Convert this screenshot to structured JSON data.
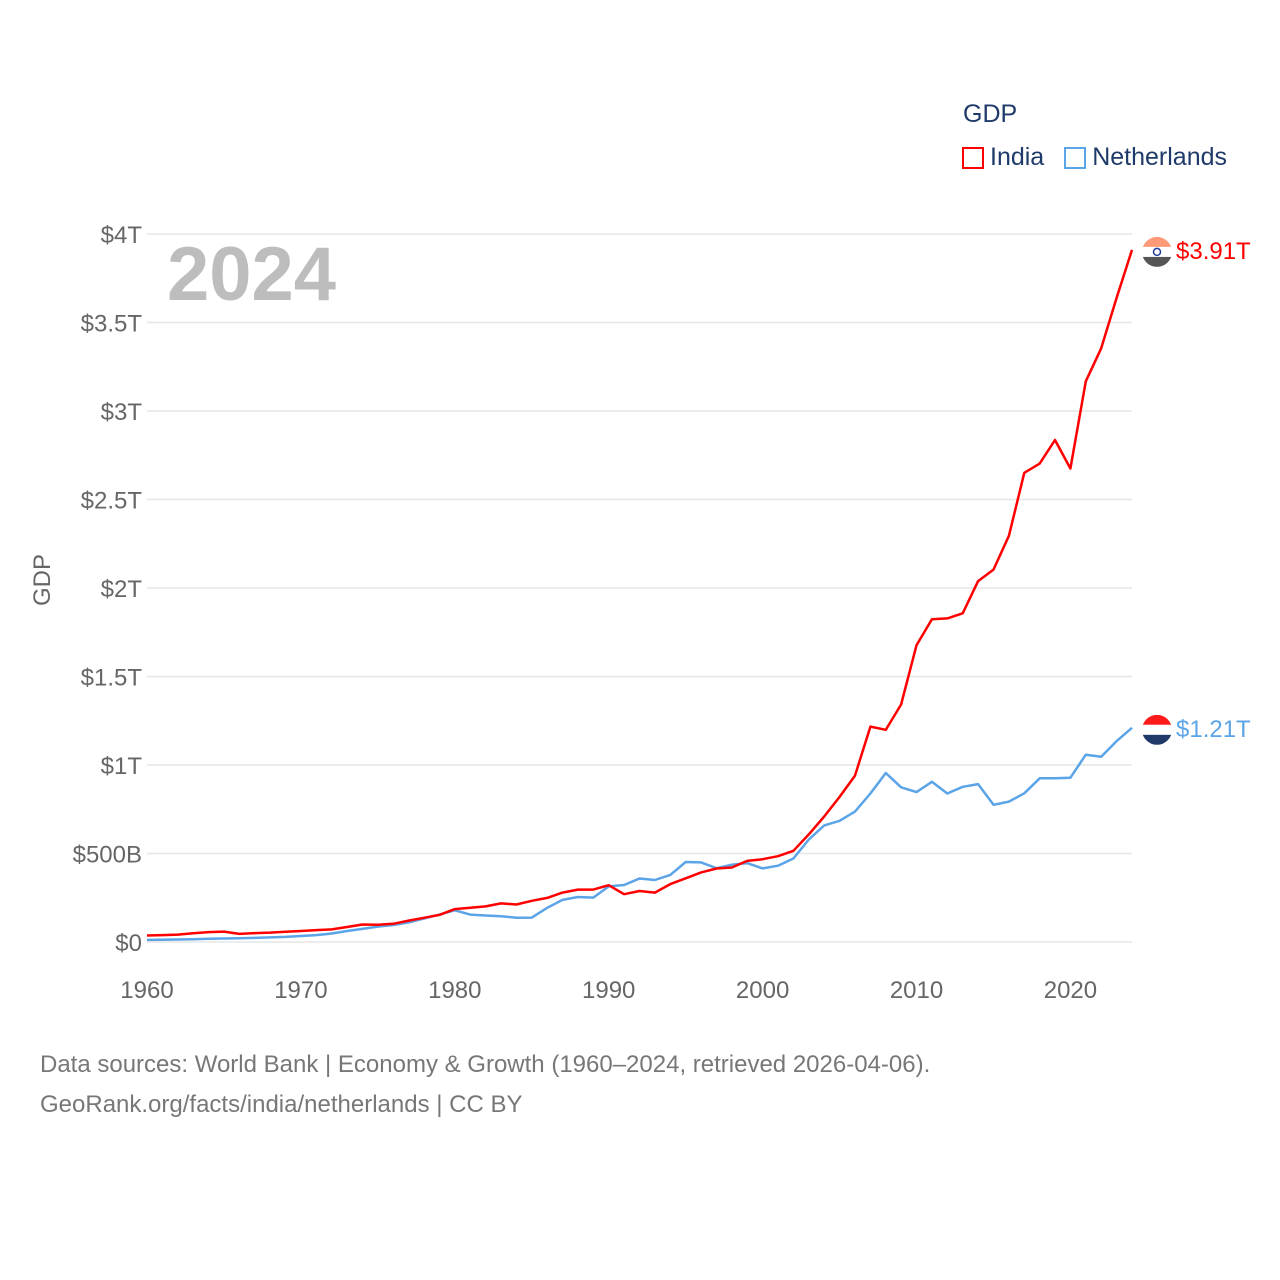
{
  "chart_data": {
    "type": "line",
    "title": "GDP",
    "ylabel": "GDP",
    "xlabel": "",
    "year_label": "2024",
    "xlim": [
      1960,
      2024
    ],
    "ylim": [
      0,
      4000
    ],
    "y_unit": "billions USD",
    "x_ticks": [
      "1960",
      "1970",
      "1980",
      "1990",
      "2000",
      "2010",
      "2020"
    ],
    "y_ticks": [
      {
        "value": 0,
        "label": "$0"
      },
      {
        "value": 500,
        "label": "$500B"
      },
      {
        "value": 1000,
        "label": "$1T"
      },
      {
        "value": 1500,
        "label": "$1.5T"
      },
      {
        "value": 2000,
        "label": "$2T"
      },
      {
        "value": 2500,
        "label": "$2.5T"
      },
      {
        "value": 3000,
        "label": "$3T"
      },
      {
        "value": 3500,
        "label": "$3.5T"
      },
      {
        "value": 4000,
        "label": "$4T"
      }
    ],
    "grid": true,
    "legend_placement": "top-right",
    "x_start": 1960,
    "series": [
      {
        "name": "India",
        "color": "#ff0000",
        "end_label": "$3.91T",
        "values": [
          37,
          39,
          42,
          49,
          56,
          59,
          46,
          50,
          53,
          58,
          62,
          67,
          71,
          85,
          99,
          98,
          103,
          121,
          137,
          153,
          186,
          193,
          201,
          218,
          212,
          233,
          249,
          279,
          296,
          296,
          321,
          270,
          288,
          279,
          327,
          360,
          393,
          415,
          421,
          458,
          468,
          485,
          515,
          608,
          709,
          820,
          940,
          1217,
          1199,
          1342,
          1676,
          1823,
          1828,
          1857,
          2039,
          2104,
          2295,
          2651,
          2703,
          2836,
          2675,
          3168,
          3354,
          3639,
          3910
        ]
      },
      {
        "name": "Netherlands",
        "color": "#5ba4e8",
        "end_label": "$1.21T",
        "values": [
          12,
          13,
          14,
          15,
          18,
          20,
          21,
          23,
          26,
          29,
          34,
          39,
          48,
          62,
          74,
          87,
          96,
          111,
          133,
          155,
          179,
          155,
          150,
          146,
          137,
          138,
          193,
          238,
          254,
          251,
          314,
          322,
          359,
          350,
          379,
          452,
          450,
          417,
          437,
          446,
          416,
          431,
          472,
          579,
          659,
          685,
          737,
          839,
          955,
          874,
          847,
          905,
          839,
          877,
          892,
          775,
          793,
          840,
          925,
          925,
          928,
          1058,
          1047,
          1135,
          1210
        ]
      }
    ]
  },
  "legend": {
    "title": "GDP",
    "items": [
      "India",
      "Netherlands"
    ]
  },
  "footer": {
    "line1": "Data sources: World Bank | Economy & Growth (1960–2024, retrieved 2026-04-06).",
    "line2": "GeoRank.org/facts/india/netherlands | CC BY"
  }
}
